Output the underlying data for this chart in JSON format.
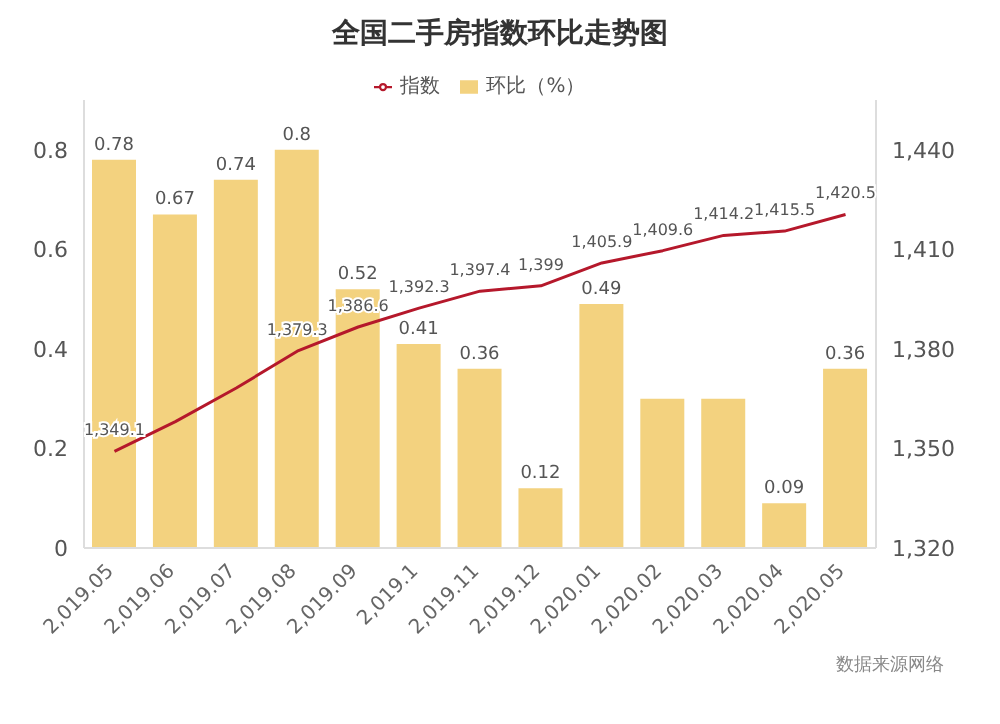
{
  "chart_data": {
    "type": "bar",
    "title": "全国二手房指数环比走势图",
    "categories": [
      "2,019.05",
      "2,019.06",
      "2,019.07",
      "2,019.08",
      "2,019.09",
      "2,019.1",
      "2,019.11",
      "2,019.12",
      "2,020.01",
      "2,020.02",
      "2,020.03",
      "2,020.04",
      "2,020.05"
    ],
    "series": [
      {
        "name": "环比（%）",
        "color": "#f3d27f",
        "values": [
          0.78,
          0.67,
          0.74,
          0.8,
          0.52,
          0.41,
          0.36,
          0.12,
          0.49,
          0.3,
          0.3,
          0.09,
          0.36
        ],
        "value_labels": [
          "0.78",
          "0.67",
          "0.74",
          "0.8",
          "0.52",
          "0.41",
          "0.36",
          "0.12",
          "0.49",
          null,
          null,
          "0.09",
          "0.36"
        ]
      },
      {
        "name": "指数",
        "type": "line",
        "axis": "y2",
        "color": "#b5182b",
        "values": [
          1349.1,
          1358.1,
          1368.2,
          1379.3,
          1386.6,
          1392.3,
          1397.4,
          1399,
          1405.9,
          1409.6,
          1414.2,
          1415.5,
          1420.5
        ],
        "value_labels": [
          "1,349.1",
          null,
          null,
          "1,379.3",
          "1,386.6",
          "1,392.3",
          "1,397.4",
          "1,399",
          "1,405.9",
          "1,409.6",
          "1,414.2",
          "1,415.5",
          "1,420.5"
        ]
      }
    ],
    "ylim": [
      0,
      0.9
    ],
    "yticks": [
      0,
      0.2,
      0.4,
      0.6,
      0.8
    ],
    "y2lim": [
      1320,
      1455
    ],
    "y2ticks": [
      {
        "value": 1320,
        "label": "1,320"
      },
      {
        "value": 1350,
        "label": "1,350"
      },
      {
        "value": 1380,
        "label": "1,380"
      },
      {
        "value": 1410,
        "label": "1,410"
      },
      {
        "value": 1440,
        "label": "1,440"
      }
    ],
    "legend": "top",
    "marker": "none",
    "grid": false,
    "annotations": [
      "数据来源网络"
    ]
  }
}
